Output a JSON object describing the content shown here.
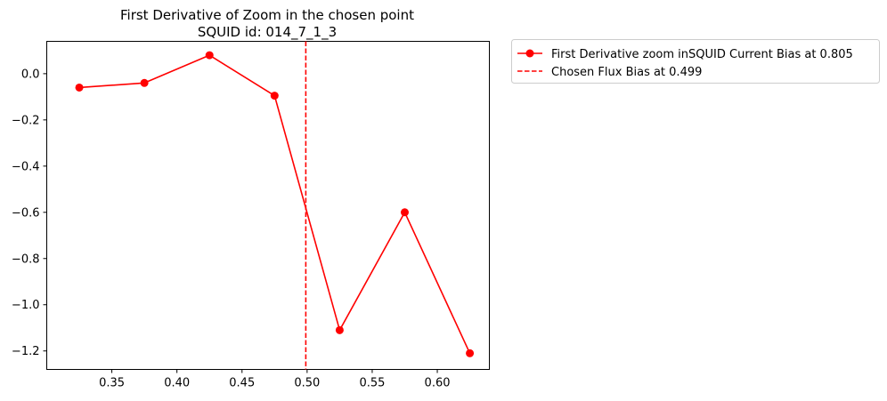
{
  "chart_data": {
    "type": "line",
    "title": "First Derivative of Zoom in the chosen point",
    "subtitle": "SQUID id: 014_7_1_3",
    "xlabel": "",
    "ylabel": "",
    "xlim": [
      0.3,
      0.64
    ],
    "ylim": [
      -1.28,
      0.14
    ],
    "xticks": [
      0.35,
      0.4,
      0.45,
      0.5,
      0.55,
      0.6
    ],
    "xtick_labels": [
      "0.35",
      "0.40",
      "0.45",
      "0.50",
      "0.55",
      "0.60"
    ],
    "yticks": [
      0.0,
      -0.2,
      -0.4,
      -0.6,
      -0.8,
      -1.0,
      -1.2
    ],
    "ytick_labels": [
      "0.0",
      "−0.2",
      "−0.4",
      "−0.6",
      "−0.8",
      "−1.0",
      "−1.2"
    ],
    "grid": false,
    "legend_position": "outside-top-right",
    "series": [
      {
        "name": "First Derivative zoom inSQUID Current Bias at 0.805",
        "color": "#ff0000",
        "marker": "circle",
        "x": [
          0.325,
          0.375,
          0.425,
          0.475,
          0.525,
          0.575,
          0.625
        ],
        "y": [
          -0.06,
          -0.04,
          0.08,
          -0.095,
          -1.11,
          -0.6,
          -1.21
        ]
      }
    ],
    "vlines": [
      {
        "name": "Chosen Flux Bias at 0.499",
        "x": 0.499,
        "color": "#ff0000",
        "style": "dashed"
      }
    ]
  }
}
